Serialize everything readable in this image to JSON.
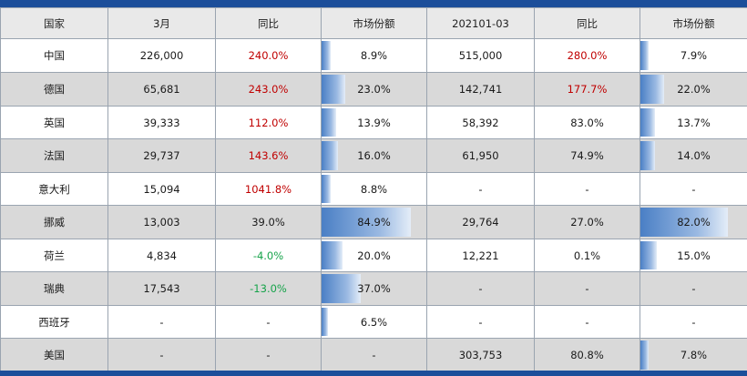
{
  "headers": [
    "国家",
    "3月",
    "同比",
    "市场份额",
    "202101-03",
    "同比",
    "市场份额"
  ],
  "rows": [
    {
      "country": "中国",
      "march": "226,000",
      "yoy": "240.0%",
      "yoy_tone": "red",
      "share": "8.9%",
      "share_value": 8.9,
      "ytd": "515,000",
      "ytd_yoy": "280.0%",
      "ytd_yoy_tone": "red",
      "ytd_share": "7.9%",
      "ytd_share_value": 7.9
    },
    {
      "country": "德国",
      "march": "65,681",
      "yoy": "243.0%",
      "yoy_tone": "red",
      "share": "23.0%",
      "share_value": 23.0,
      "ytd": "142,741",
      "ytd_yoy": "177.7%",
      "ytd_yoy_tone": "red",
      "ytd_share": "22.0%",
      "ytd_share_value": 22.0
    },
    {
      "country": "英国",
      "march": "39,333",
      "yoy": "112.0%",
      "yoy_tone": "red",
      "share": "13.9%",
      "share_value": 13.9,
      "ytd": "58,392",
      "ytd_yoy": "83.0%",
      "ytd_yoy_tone": "normal",
      "ytd_share": "13.7%",
      "ytd_share_value": 13.7
    },
    {
      "country": "法国",
      "march": "29,737",
      "yoy": "143.6%",
      "yoy_tone": "red",
      "share": "16.0%",
      "share_value": 16.0,
      "ytd": "61,950",
      "ytd_yoy": "74.9%",
      "ytd_yoy_tone": "normal",
      "ytd_share": "14.0%",
      "ytd_share_value": 14.0
    },
    {
      "country": "意大利",
      "march": "15,094",
      "yoy": "1041.8%",
      "yoy_tone": "red",
      "share": "8.8%",
      "share_value": 8.8,
      "ytd": "-",
      "ytd_yoy": "-",
      "ytd_yoy_tone": "normal",
      "ytd_share": "-",
      "ytd_share_value": 0
    },
    {
      "country": "挪威",
      "march": "13,003",
      "yoy": "39.0%",
      "yoy_tone": "normal",
      "share": "84.9%",
      "share_value": 84.9,
      "ytd": "29,764",
      "ytd_yoy": "27.0%",
      "ytd_yoy_tone": "normal",
      "ytd_share": "82.0%",
      "ytd_share_value": 82.0
    },
    {
      "country": "荷兰",
      "march": "4,834",
      "yoy": "-4.0%",
      "yoy_tone": "green",
      "share": "20.0%",
      "share_value": 20.0,
      "ytd": "12,221",
      "ytd_yoy": "0.1%",
      "ytd_yoy_tone": "normal",
      "ytd_share": "15.0%",
      "ytd_share_value": 15.0
    },
    {
      "country": "瑞典",
      "march": "17,543",
      "yoy": "-13.0%",
      "yoy_tone": "green",
      "share": "37.0%",
      "share_value": 37.0,
      "ytd": "-",
      "ytd_yoy": "-",
      "ytd_yoy_tone": "normal",
      "ytd_share": "-",
      "ytd_share_value": 0
    },
    {
      "country": "西班牙",
      "march": "-",
      "yoy": "-",
      "yoy_tone": "normal",
      "share": "6.5%",
      "share_value": 6.5,
      "ytd": "-",
      "ytd_yoy": "-",
      "ytd_yoy_tone": "normal",
      "ytd_share": "-",
      "ytd_share_value": 0
    },
    {
      "country": "美国",
      "march": "-",
      "yoy": "-",
      "yoy_tone": "normal",
      "share": "-",
      "share_value": 0,
      "ytd": "303,753",
      "ytd_yoy": "80.8%",
      "ytd_yoy_tone": "normal",
      "ytd_share": "7.8%",
      "ytd_share_value": 7.8
    }
  ]
}
